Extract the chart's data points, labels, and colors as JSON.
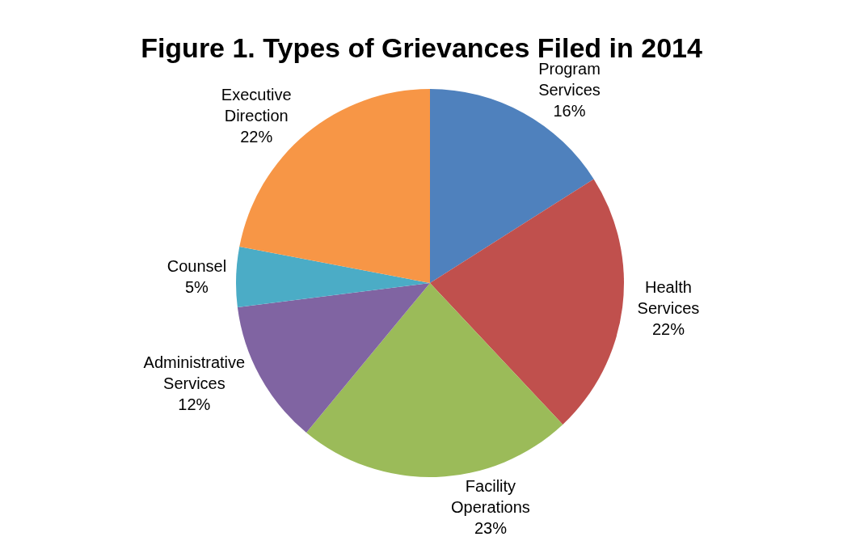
{
  "chart_data": {
    "type": "pie",
    "title": "Figure 1. Types of Grievances Filed in 2014",
    "categories": [
      "Program Services",
      "Health Services",
      "Facility Operations",
      "Administrative Services",
      "Counsel",
      "Executive Direction"
    ],
    "values": [
      16,
      22,
      23,
      12,
      5,
      22
    ],
    "colors": [
      "#4f81bd",
      "#c0504d",
      "#9bbb59",
      "#8064a2",
      "#4bacc6",
      "#f79646"
    ],
    "value_labels": [
      "16%",
      "22%",
      "23%",
      "12%",
      "5%",
      "22%"
    ],
    "legend": false
  }
}
